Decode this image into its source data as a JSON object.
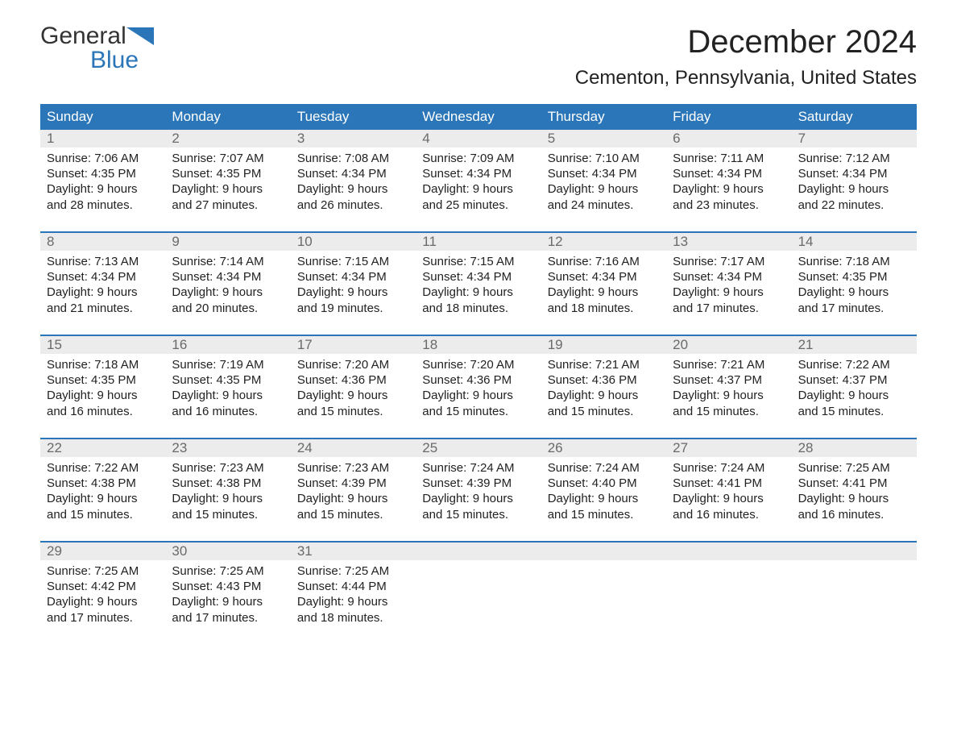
{
  "logo": {
    "word1": "General",
    "word2": "Blue"
  },
  "header": {
    "month_title": "December 2024",
    "location": "Cementon, Pennsylvania, United States"
  },
  "colors": {
    "header_bg": "#2a76b8",
    "header_text": "#ffffff",
    "daynum_bg": "#ececec",
    "daynum_text": "#6a6a6a",
    "body_text": "#222222",
    "page_bg": "#ffffff",
    "rule": "#2a76b8"
  },
  "dow": [
    "Sunday",
    "Monday",
    "Tuesday",
    "Wednesday",
    "Thursday",
    "Friday",
    "Saturday"
  ],
  "weeks": [
    [
      {
        "n": "1",
        "sr": "Sunrise: 7:06 AM",
        "ss": "Sunset: 4:35 PM",
        "d1": "Daylight: 9 hours",
        "d2": "and 28 minutes."
      },
      {
        "n": "2",
        "sr": "Sunrise: 7:07 AM",
        "ss": "Sunset: 4:35 PM",
        "d1": "Daylight: 9 hours",
        "d2": "and 27 minutes."
      },
      {
        "n": "3",
        "sr": "Sunrise: 7:08 AM",
        "ss": "Sunset: 4:34 PM",
        "d1": "Daylight: 9 hours",
        "d2": "and 26 minutes."
      },
      {
        "n": "4",
        "sr": "Sunrise: 7:09 AM",
        "ss": "Sunset: 4:34 PM",
        "d1": "Daylight: 9 hours",
        "d2": "and 25 minutes."
      },
      {
        "n": "5",
        "sr": "Sunrise: 7:10 AM",
        "ss": "Sunset: 4:34 PM",
        "d1": "Daylight: 9 hours",
        "d2": "and 24 minutes."
      },
      {
        "n": "6",
        "sr": "Sunrise: 7:11 AM",
        "ss": "Sunset: 4:34 PM",
        "d1": "Daylight: 9 hours",
        "d2": "and 23 minutes."
      },
      {
        "n": "7",
        "sr": "Sunrise: 7:12 AM",
        "ss": "Sunset: 4:34 PM",
        "d1": "Daylight: 9 hours",
        "d2": "and 22 minutes."
      }
    ],
    [
      {
        "n": "8",
        "sr": "Sunrise: 7:13 AM",
        "ss": "Sunset: 4:34 PM",
        "d1": "Daylight: 9 hours",
        "d2": "and 21 minutes."
      },
      {
        "n": "9",
        "sr": "Sunrise: 7:14 AM",
        "ss": "Sunset: 4:34 PM",
        "d1": "Daylight: 9 hours",
        "d2": "and 20 minutes."
      },
      {
        "n": "10",
        "sr": "Sunrise: 7:15 AM",
        "ss": "Sunset: 4:34 PM",
        "d1": "Daylight: 9 hours",
        "d2": "and 19 minutes."
      },
      {
        "n": "11",
        "sr": "Sunrise: 7:15 AM",
        "ss": "Sunset: 4:34 PM",
        "d1": "Daylight: 9 hours",
        "d2": "and 18 minutes."
      },
      {
        "n": "12",
        "sr": "Sunrise: 7:16 AM",
        "ss": "Sunset: 4:34 PM",
        "d1": "Daylight: 9 hours",
        "d2": "and 18 minutes."
      },
      {
        "n": "13",
        "sr": "Sunrise: 7:17 AM",
        "ss": "Sunset: 4:34 PM",
        "d1": "Daylight: 9 hours",
        "d2": "and 17 minutes."
      },
      {
        "n": "14",
        "sr": "Sunrise: 7:18 AM",
        "ss": "Sunset: 4:35 PM",
        "d1": "Daylight: 9 hours",
        "d2": "and 17 minutes."
      }
    ],
    [
      {
        "n": "15",
        "sr": "Sunrise: 7:18 AM",
        "ss": "Sunset: 4:35 PM",
        "d1": "Daylight: 9 hours",
        "d2": "and 16 minutes."
      },
      {
        "n": "16",
        "sr": "Sunrise: 7:19 AM",
        "ss": "Sunset: 4:35 PM",
        "d1": "Daylight: 9 hours",
        "d2": "and 16 minutes."
      },
      {
        "n": "17",
        "sr": "Sunrise: 7:20 AM",
        "ss": "Sunset: 4:36 PM",
        "d1": "Daylight: 9 hours",
        "d2": "and 15 minutes."
      },
      {
        "n": "18",
        "sr": "Sunrise: 7:20 AM",
        "ss": "Sunset: 4:36 PM",
        "d1": "Daylight: 9 hours",
        "d2": "and 15 minutes."
      },
      {
        "n": "19",
        "sr": "Sunrise: 7:21 AM",
        "ss": "Sunset: 4:36 PM",
        "d1": "Daylight: 9 hours",
        "d2": "and 15 minutes."
      },
      {
        "n": "20",
        "sr": "Sunrise: 7:21 AM",
        "ss": "Sunset: 4:37 PM",
        "d1": "Daylight: 9 hours",
        "d2": "and 15 minutes."
      },
      {
        "n": "21",
        "sr": "Sunrise: 7:22 AM",
        "ss": "Sunset: 4:37 PM",
        "d1": "Daylight: 9 hours",
        "d2": "and 15 minutes."
      }
    ],
    [
      {
        "n": "22",
        "sr": "Sunrise: 7:22 AM",
        "ss": "Sunset: 4:38 PM",
        "d1": "Daylight: 9 hours",
        "d2": "and 15 minutes."
      },
      {
        "n": "23",
        "sr": "Sunrise: 7:23 AM",
        "ss": "Sunset: 4:38 PM",
        "d1": "Daylight: 9 hours",
        "d2": "and 15 minutes."
      },
      {
        "n": "24",
        "sr": "Sunrise: 7:23 AM",
        "ss": "Sunset: 4:39 PM",
        "d1": "Daylight: 9 hours",
        "d2": "and 15 minutes."
      },
      {
        "n": "25",
        "sr": "Sunrise: 7:24 AM",
        "ss": "Sunset: 4:39 PM",
        "d1": "Daylight: 9 hours",
        "d2": "and 15 minutes."
      },
      {
        "n": "26",
        "sr": "Sunrise: 7:24 AM",
        "ss": "Sunset: 4:40 PM",
        "d1": "Daylight: 9 hours",
        "d2": "and 15 minutes."
      },
      {
        "n": "27",
        "sr": "Sunrise: 7:24 AM",
        "ss": "Sunset: 4:41 PM",
        "d1": "Daylight: 9 hours",
        "d2": "and 16 minutes."
      },
      {
        "n": "28",
        "sr": "Sunrise: 7:25 AM",
        "ss": "Sunset: 4:41 PM",
        "d1": "Daylight: 9 hours",
        "d2": "and 16 minutes."
      }
    ],
    [
      {
        "n": "29",
        "sr": "Sunrise: 7:25 AM",
        "ss": "Sunset: 4:42 PM",
        "d1": "Daylight: 9 hours",
        "d2": "and 17 minutes."
      },
      {
        "n": "30",
        "sr": "Sunrise: 7:25 AM",
        "ss": "Sunset: 4:43 PM",
        "d1": "Daylight: 9 hours",
        "d2": "and 17 minutes."
      },
      {
        "n": "31",
        "sr": "Sunrise: 7:25 AM",
        "ss": "Sunset: 4:44 PM",
        "d1": "Daylight: 9 hours",
        "d2": "and 18 minutes."
      },
      null,
      null,
      null,
      null
    ]
  ]
}
